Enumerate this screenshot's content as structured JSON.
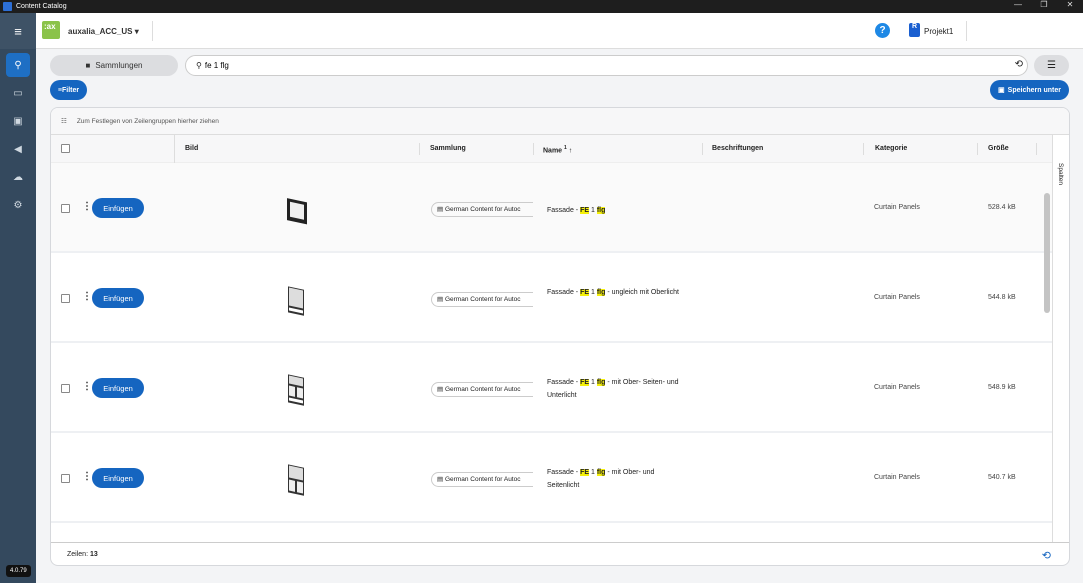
{
  "window": {
    "title": "Content Catalog"
  },
  "header": {
    "tenant": "auxalia_ACC_US",
    "project": "Projekt1",
    "help": "?"
  },
  "sidebar": {
    "version": "4.0.79",
    "items": [
      "search",
      "folder",
      "save",
      "campaign",
      "cloud",
      "settings"
    ]
  },
  "toolbar": {
    "collections": "Sammlungen",
    "search_value": "fe 1 flg",
    "filter": "Filter",
    "save_as": "Speichern unter"
  },
  "table": {
    "group_hint": "Zum Festlegen von Zeilengruppen hierher ziehen",
    "columns": {
      "image": "Bild",
      "collection": "Sammlung",
      "name": "Name",
      "sort_index": "1",
      "labels": "Beschriftungen",
      "category": "Kategorie",
      "size": "Größe"
    },
    "columns_panel": "Spalten",
    "insert_label": "Einfügen",
    "rows": [
      {
        "collection": "German Content for Autoc",
        "name_pre": "Fassade - ",
        "hl1": "FE",
        "mid": " 1 ",
        "hl2": "flg",
        "name_post": "",
        "category": "Curtain Panels",
        "size": "528.4 kB"
      },
      {
        "collection": "German Content for Autoc",
        "name_pre": "Fassade - ",
        "hl1": "FE",
        "mid": " 1 ",
        "hl2": "flg",
        "name_post": " - ungleich mit Oberlicht",
        "category": "Curtain Panels",
        "size": "544.8 kB"
      },
      {
        "collection": "German Content for Autoc",
        "name_pre": "Fassade - ",
        "hl1": "FE",
        "mid": " 1 ",
        "hl2": "flg",
        "name_post": " - mit Ober- Seiten- und Unterlicht",
        "category": "Curtain Panels",
        "size": "548.9 kB"
      },
      {
        "collection": "German Content for Autoc",
        "name_pre": "Fassade - ",
        "hl1": "FE",
        "mid": " 1 ",
        "hl2": "flg",
        "name_post": " - mit Ober- und Seitenlicht",
        "category": "Curtain Panels",
        "size": "540.7 kB"
      }
    ],
    "footer_label": "Zeilen:",
    "row_count": "13"
  },
  "colors": {
    "accent": "#1565c0",
    "sidebar": "#34495e",
    "highlight": "#f5f00a"
  }
}
